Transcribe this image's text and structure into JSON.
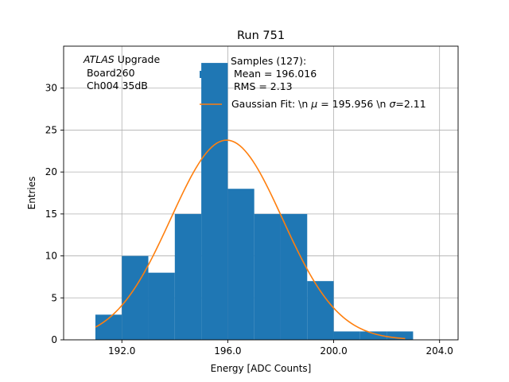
{
  "chart_data": {
    "type": "bar",
    "title": "Run 751",
    "xlabel": "Energy [ADC Counts]",
    "ylabel": "Entries",
    "xlim": [
      189.8,
      204.7
    ],
    "ylim": [
      0,
      35
    ],
    "grid": true,
    "xticks": [
      192.0,
      196.0,
      200.0,
      204.0
    ],
    "xtick_labels": [
      "192.0",
      "196.0",
      "200.0",
      "204.0"
    ],
    "yticks": [
      0,
      5,
      10,
      15,
      20,
      25,
      30
    ],
    "yticks_labels": [
      "0",
      "5",
      "10",
      "15",
      "20",
      "25",
      "30"
    ],
    "histogram": {
      "name": "Samples (127):",
      "color": "#1f77b4",
      "bin_edges": [
        191,
        192,
        193,
        194,
        195,
        196,
        197,
        198,
        199,
        200,
        201,
        202,
        203
      ],
      "counts": [
        3,
        10,
        8,
        15,
        33,
        18,
        15,
        15,
        7,
        1,
        1,
        1
      ]
    },
    "fit": {
      "name": "Gaussian Fit",
      "color": "#ff7f0e",
      "mu": 195.956,
      "sigma": 2.11,
      "amplitude": 23.8,
      "x_range": [
        191,
        202.7
      ]
    },
    "annotation": {
      "italic": "ATLAS",
      "rest": " Upgrade",
      "line2": " Board260",
      "line3": " Ch004 35dB"
    },
    "legend": {
      "location": "top-right",
      "hist_lines": [
        "Samples (127):",
        " Mean = 196.016",
        " RMS = 2.13"
      ],
      "fit_prefix": "Gaussian Fit: \\n ",
      "fit_mu_symbol": "μ",
      "fit_mu_value": " = 195.956 \\n ",
      "fit_sigma_symbol": "σ",
      "fit_sigma_value": "=2.11"
    }
  }
}
